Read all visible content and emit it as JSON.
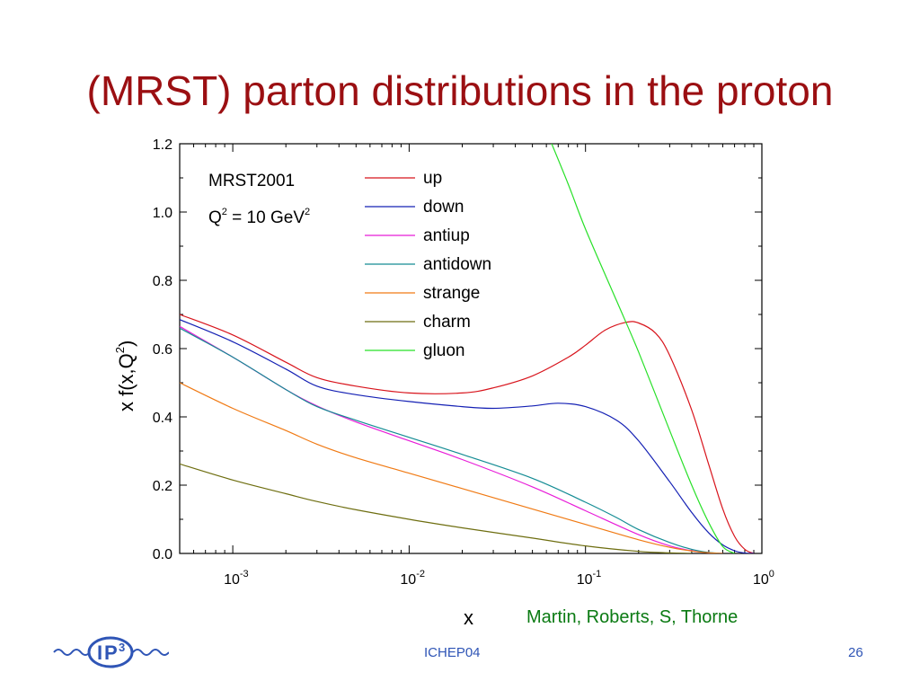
{
  "slide": {
    "title": "(MRST) parton distributions in the proton",
    "credit": "Martin, Roberts, S, Thorne",
    "footer_center": "ICHEP04",
    "page_number": "26",
    "logo_text": "IP3"
  },
  "colors": {
    "title": "#9b0f12",
    "credit": "#0a7a12",
    "footer": "#2f55b6",
    "logo": "#2f55b6"
  },
  "chart_data": {
    "type": "line",
    "x_scale": "log",
    "xlim": [
      0.0005,
      1
    ],
    "ylim": [
      0,
      1.2
    ],
    "xlabel": "x",
    "ylabel": "x f(x,Q2)",
    "annotation": [
      "MRST2001",
      "Q2 = 10 GeV2"
    ],
    "y_ticks": [
      "0.0",
      "0.2",
      "0.4",
      "0.6",
      "0.8",
      "1.0",
      "1.2"
    ],
    "x_ticks": [
      {
        "value": 0.001,
        "base": "10",
        "exp": "-3"
      },
      {
        "value": 0.01,
        "base": "10",
        "exp": "-2"
      },
      {
        "value": 0.1,
        "base": "10",
        "exp": "-1"
      },
      {
        "value": 1,
        "base": "10",
        "exp": "0"
      }
    ],
    "legend_position": "top-center",
    "series": [
      {
        "name": "up",
        "color": "#d8141c",
        "points": [
          [
            0.0005,
            0.7
          ],
          [
            0.001,
            0.64
          ],
          [
            0.002,
            0.56
          ],
          [
            0.003,
            0.515
          ],
          [
            0.005,
            0.49
          ],
          [
            0.01,
            0.47
          ],
          [
            0.02,
            0.47
          ],
          [
            0.03,
            0.485
          ],
          [
            0.05,
            0.52
          ],
          [
            0.08,
            0.575
          ],
          [
            0.1,
            0.61
          ],
          [
            0.13,
            0.655
          ],
          [
            0.17,
            0.677
          ],
          [
            0.2,
            0.675
          ],
          [
            0.25,
            0.645
          ],
          [
            0.3,
            0.58
          ],
          [
            0.4,
            0.42
          ],
          [
            0.5,
            0.26
          ],
          [
            0.6,
            0.13
          ],
          [
            0.7,
            0.05
          ],
          [
            0.8,
            0.012
          ],
          [
            0.9,
            0.0
          ]
        ]
      },
      {
        "name": "down",
        "color": "#1420b4",
        "points": [
          [
            0.0005,
            0.685
          ],
          [
            0.001,
            0.62
          ],
          [
            0.002,
            0.54
          ],
          [
            0.003,
            0.49
          ],
          [
            0.005,
            0.465
          ],
          [
            0.01,
            0.445
          ],
          [
            0.02,
            0.43
          ],
          [
            0.03,
            0.425
          ],
          [
            0.05,
            0.432
          ],
          [
            0.07,
            0.44
          ],
          [
            0.1,
            0.43
          ],
          [
            0.15,
            0.39
          ],
          [
            0.2,
            0.33
          ],
          [
            0.3,
            0.21
          ],
          [
            0.4,
            0.12
          ],
          [
            0.5,
            0.06
          ],
          [
            0.6,
            0.025
          ],
          [
            0.7,
            0.008
          ],
          [
            0.8,
            0.001
          ],
          [
            0.9,
            0.0
          ]
        ]
      },
      {
        "name": "antiup",
        "color": "#e81cd8",
        "points": [
          [
            0.0005,
            0.665
          ],
          [
            0.001,
            0.575
          ],
          [
            0.002,
            0.48
          ],
          [
            0.003,
            0.432
          ],
          [
            0.005,
            0.385
          ],
          [
            0.01,
            0.33
          ],
          [
            0.02,
            0.275
          ],
          [
            0.05,
            0.195
          ],
          [
            0.1,
            0.125
          ],
          [
            0.2,
            0.055
          ],
          [
            0.3,
            0.022
          ],
          [
            0.4,
            0.008
          ],
          [
            0.5,
            0.002
          ],
          [
            0.6,
            0.0
          ]
        ]
      },
      {
        "name": "antidown",
        "color": "#148c94",
        "points": [
          [
            0.0005,
            0.66
          ],
          [
            0.001,
            0.575
          ],
          [
            0.002,
            0.48
          ],
          [
            0.003,
            0.43
          ],
          [
            0.005,
            0.39
          ],
          [
            0.01,
            0.34
          ],
          [
            0.02,
            0.29
          ],
          [
            0.05,
            0.22
          ],
          [
            0.1,
            0.15
          ],
          [
            0.15,
            0.105
          ],
          [
            0.2,
            0.07
          ],
          [
            0.3,
            0.032
          ],
          [
            0.4,
            0.012
          ],
          [
            0.5,
            0.003
          ],
          [
            0.6,
            0.0
          ]
        ]
      },
      {
        "name": "strange",
        "color": "#f07a14",
        "points": [
          [
            0.0005,
            0.5
          ],
          [
            0.001,
            0.425
          ],
          [
            0.002,
            0.36
          ],
          [
            0.003,
            0.32
          ],
          [
            0.005,
            0.28
          ],
          [
            0.01,
            0.235
          ],
          [
            0.02,
            0.19
          ],
          [
            0.05,
            0.13
          ],
          [
            0.1,
            0.085
          ],
          [
            0.2,
            0.04
          ],
          [
            0.3,
            0.018
          ],
          [
            0.4,
            0.007
          ],
          [
            0.5,
            0.002
          ],
          [
            0.6,
            0.0
          ]
        ]
      },
      {
        "name": "charm",
        "color": "#6e6e10",
        "points": [
          [
            0.0005,
            0.262
          ],
          [
            0.001,
            0.215
          ],
          [
            0.002,
            0.175
          ],
          [
            0.003,
            0.152
          ],
          [
            0.005,
            0.128
          ],
          [
            0.01,
            0.1
          ],
          [
            0.02,
            0.075
          ],
          [
            0.05,
            0.045
          ],
          [
            0.1,
            0.022
          ],
          [
            0.2,
            0.006
          ],
          [
            0.3,
            0.0015
          ],
          [
            0.4,
            0.0
          ]
        ]
      },
      {
        "name": "gluon",
        "color": "#28e028",
        "points": [
          [
            0.062,
            1.22
          ],
          [
            0.08,
            1.08
          ],
          [
            0.1,
            0.95
          ],
          [
            0.15,
            0.74
          ],
          [
            0.2,
            0.59
          ],
          [
            0.3,
            0.36
          ],
          [
            0.4,
            0.2
          ],
          [
            0.5,
            0.09
          ],
          [
            0.6,
            0.02
          ],
          [
            0.7,
            0.0
          ]
        ]
      }
    ]
  }
}
